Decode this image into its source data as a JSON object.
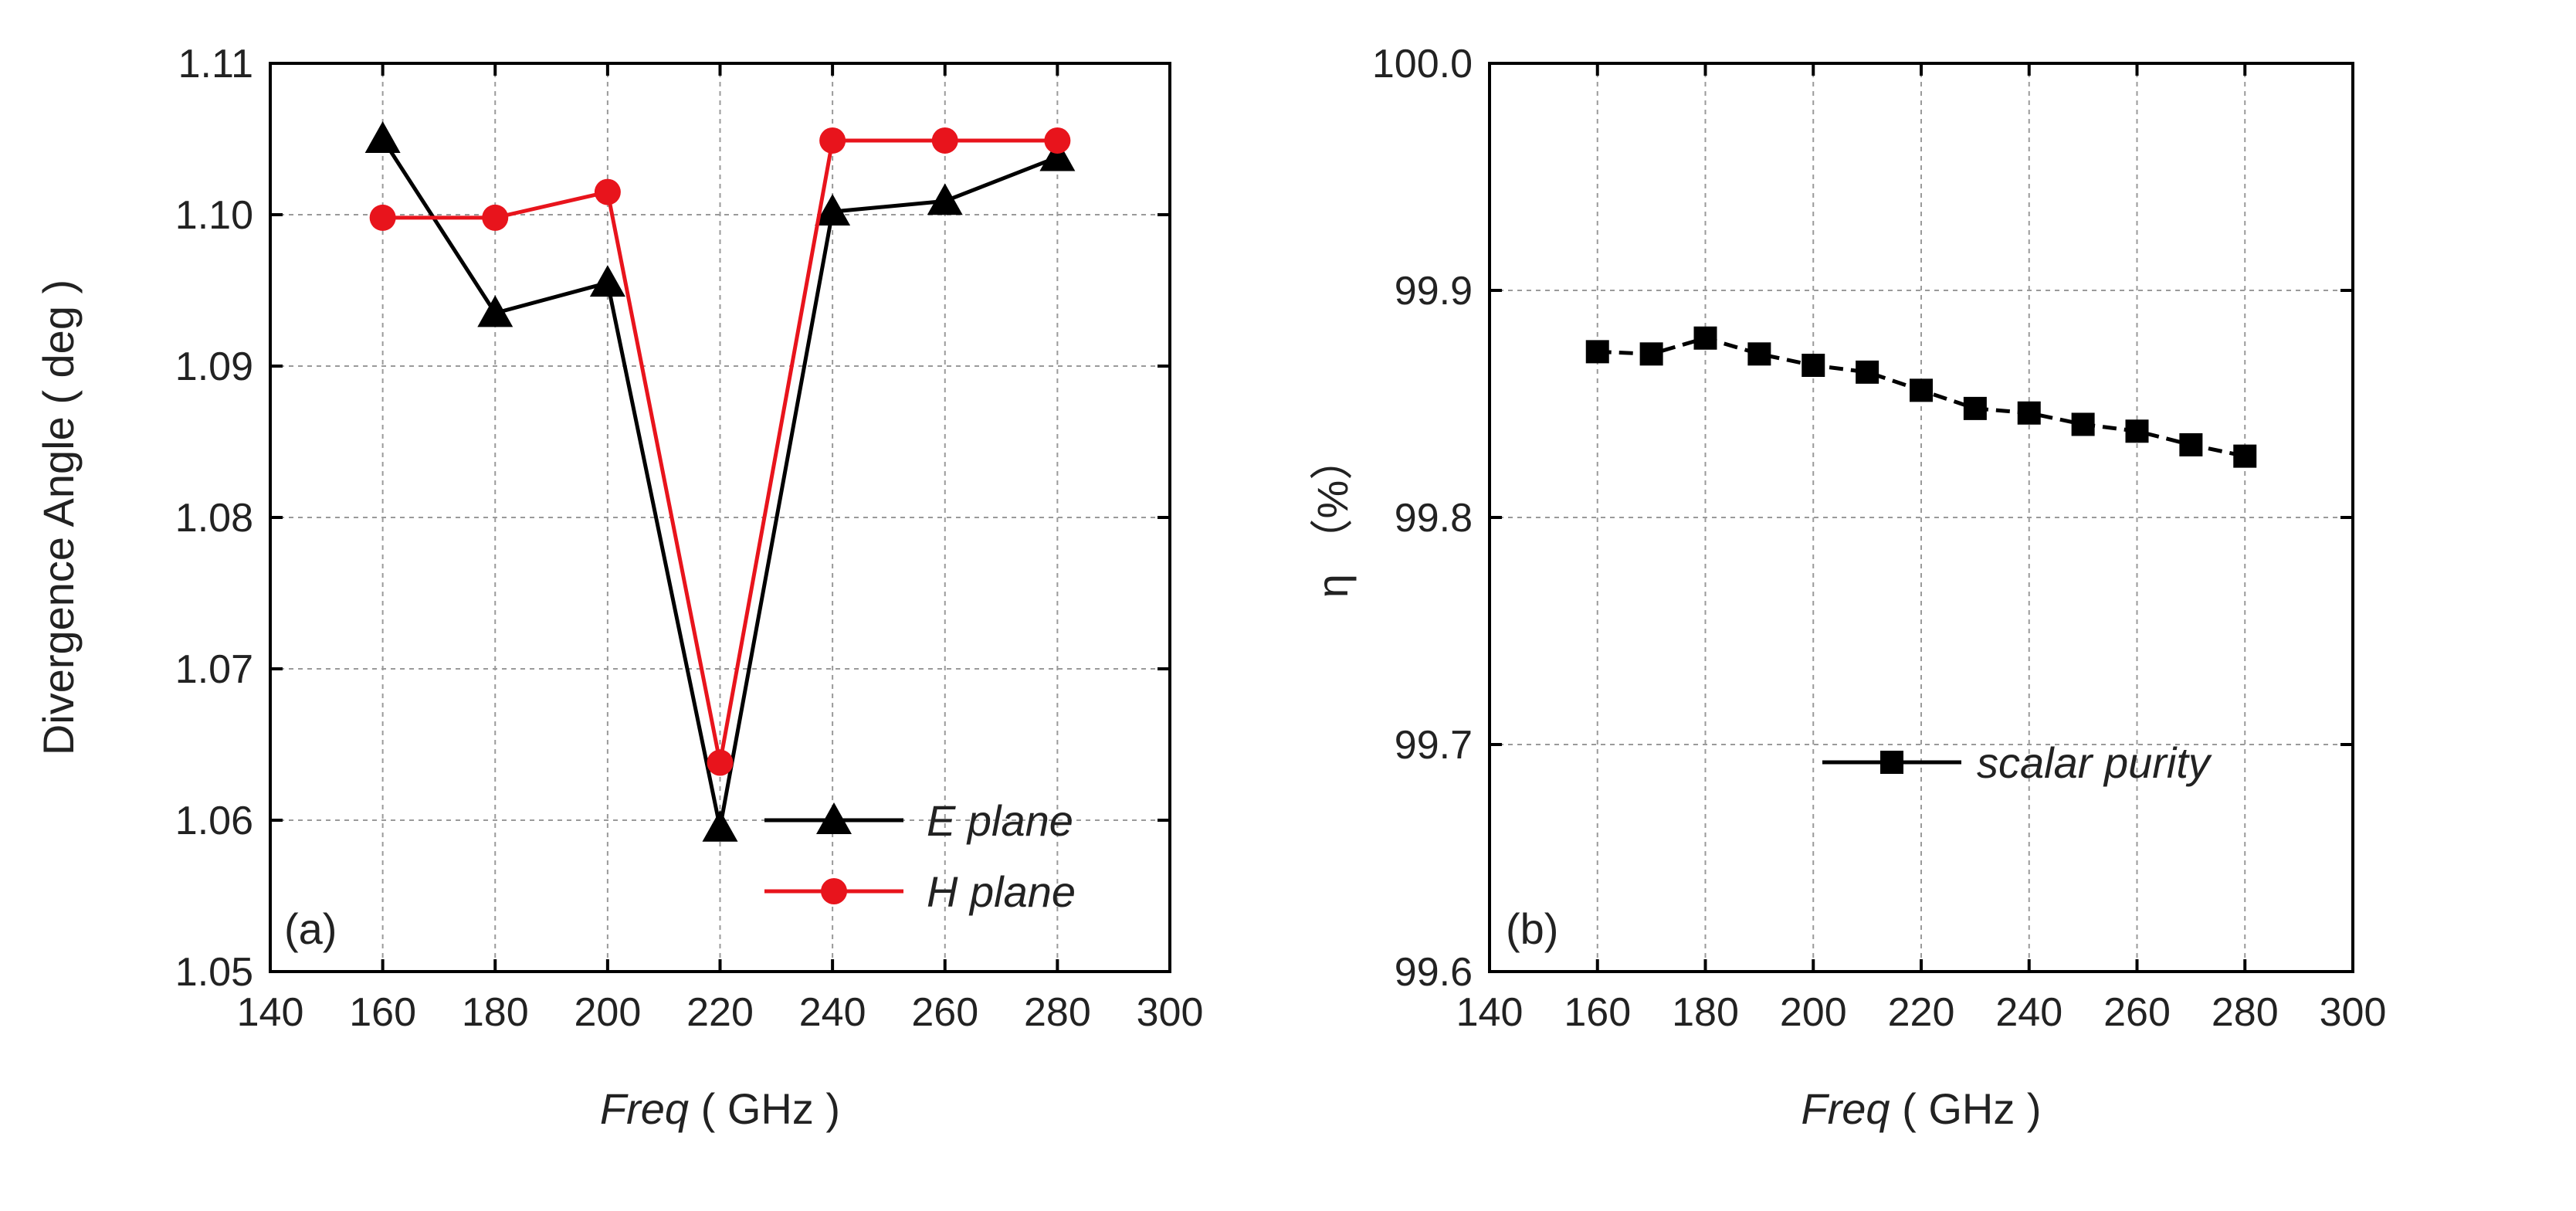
{
  "chart_data": [
    {
      "id": "a",
      "type": "line",
      "panel_label": "(a)",
      "title": "",
      "xlabel_italic": "Freq",
      "xlabel_unit": " ( GHz )",
      "ylabel": "Divergence Angle  ( deg )",
      "xlim": [
        140,
        300
      ],
      "ylim": [
        1.05,
        1.11
      ],
      "xticks": [
        140,
        160,
        180,
        200,
        220,
        240,
        260,
        280,
        300
      ],
      "yticks": [
        1.05,
        1.06,
        1.07,
        1.08,
        1.09,
        1.1,
        1.11
      ],
      "ytick_labels": [
        "1.05",
        "1.06",
        "1.07",
        "1.08",
        "1.09",
        "1.10",
        "1.11"
      ],
      "grid": true,
      "legend_position": "bottom-right",
      "series": [
        {
          "name": "E plane",
          "color": "#000000",
          "marker": "triangle",
          "x": [
            160,
            180,
            200,
            220,
            240,
            260,
            280
          ],
          "y": [
            1.105,
            1.0935,
            1.0955,
            1.0595,
            1.1002,
            1.1009,
            1.1038
          ]
        },
        {
          "name": "H plane",
          "color": "#e8141c",
          "marker": "circle",
          "x": [
            160,
            180,
            200,
            220,
            240,
            260,
            280
          ],
          "y": [
            1.0998,
            1.0998,
            1.1015,
            1.0638,
            1.1049,
            1.1049,
            1.1049
          ]
        }
      ]
    },
    {
      "id": "b",
      "type": "line",
      "panel_label": "(b)",
      "title": "",
      "xlabel_italic": "Freq",
      "xlabel_unit": " ( GHz )",
      "ylabel": "η （%）",
      "xlim": [
        140,
        300
      ],
      "ylim": [
        99.6,
        100.0
      ],
      "xticks": [
        140,
        160,
        180,
        200,
        220,
        240,
        260,
        280,
        300
      ],
      "yticks": [
        99.6,
        99.7,
        99.8,
        99.9,
        100.0
      ],
      "ytick_labels": [
        "99.6",
        "99.7",
        "99.8",
        "99.9",
        "100.0"
      ],
      "grid": true,
      "legend_position": "lower-middle",
      "series": [
        {
          "name": "scalar purity",
          "color": "#000000",
          "marker": "square",
          "dashed": true,
          "x": [
            160,
            170,
            180,
            190,
            200,
            210,
            220,
            230,
            240,
            250,
            260,
            270,
            280
          ],
          "y": [
            99.873,
            99.872,
            99.879,
            99.872,
            99.867,
            99.864,
            99.856,
            99.848,
            99.846,
            99.841,
            99.838,
            99.832,
            99.827
          ]
        }
      ]
    }
  ]
}
